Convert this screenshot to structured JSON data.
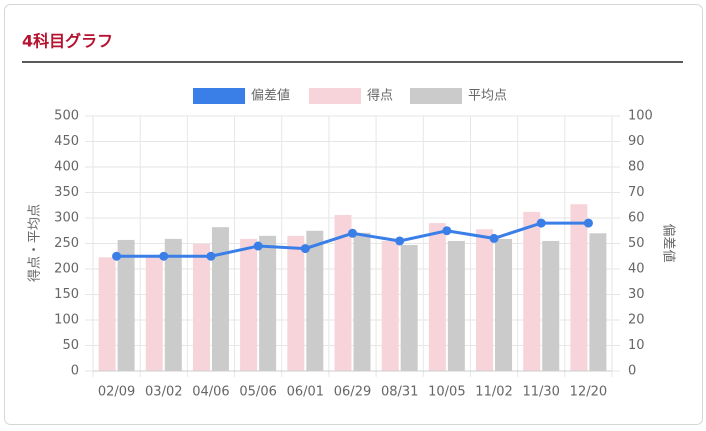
{
  "chart_data": {
    "type": "bar",
    "title": "4科目グラフ",
    "y_label": "得点・平均点",
    "y2_label": "偏差値",
    "categories": [
      "02/09",
      "03/02",
      "04/06",
      "05/06",
      "06/01",
      "06/29",
      "08/31",
      "10/05",
      "11/02",
      "11/30",
      "12/20"
    ],
    "series": [
      {
        "name": "偏差値",
        "type": "line",
        "axis": "y2",
        "color": "#3a7ee8",
        "values": [
          45,
          45,
          45,
          49,
          48,
          54,
          51,
          55,
          52,
          58,
          58
        ]
      },
      {
        "name": "得点",
        "type": "bar",
        "color": "#f7d4d9",
        "values": [
          223,
          225,
          249,
          259,
          265,
          306,
          255,
          290,
          278,
          312,
          327
        ]
      },
      {
        "name": "平均点",
        "type": "bar",
        "color": "#cbcbcb",
        "values": [
          257,
          259,
          282,
          265,
          275,
          271,
          247,
          255,
          259,
          255,
          270
        ]
      }
    ],
    "ylim": [
      0,
      500
    ],
    "yticks": [
      0,
      50,
      100,
      150,
      200,
      250,
      300,
      350,
      400,
      450,
      500
    ],
    "y2lim": [
      0,
      100
    ],
    "y2ticks": [
      0,
      10,
      20,
      30,
      40,
      50,
      60,
      70,
      80,
      90,
      100
    ],
    "grid": true,
    "legend": "top"
  }
}
